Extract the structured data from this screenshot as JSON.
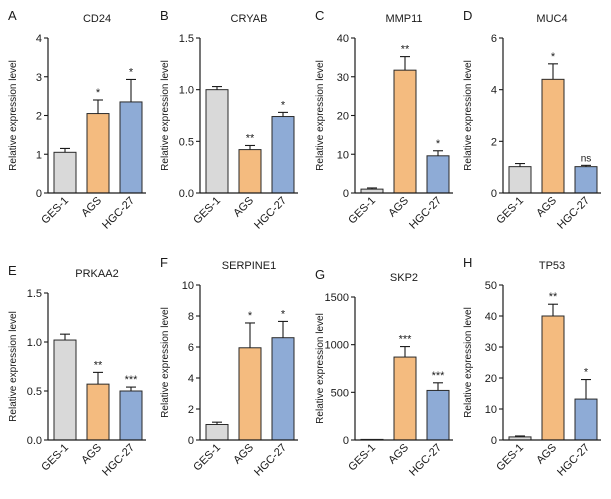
{
  "colors": {
    "GES-1": "#d9d9d9",
    "AGS": "#f4bb7f",
    "HGC-27": "#8eabd6"
  },
  "chart_data": [
    {
      "panel": "A",
      "type": "bar",
      "title": "CD24",
      "ylabel": "Relative expression level",
      "categories": [
        "GES-1",
        "AGS",
        "HGC-27"
      ],
      "values": [
        1.05,
        2.05,
        2.35
      ],
      "errors": [
        0.1,
        0.35,
        0.58
      ],
      "significance": [
        "",
        "*",
        "*"
      ],
      "ylim": [
        0,
        4
      ],
      "yticks": [
        0,
        1,
        2,
        3,
        4
      ],
      "tick_labels": [
        "0",
        "1",
        "2",
        "3",
        "4"
      ]
    },
    {
      "panel": "B",
      "type": "bar",
      "title": "CRYAB",
      "ylabel": "Relative expression level",
      "categories": [
        "GES-1",
        "AGS",
        "HGC-27"
      ],
      "values": [
        1.0,
        0.42,
        0.74
      ],
      "errors": [
        0.03,
        0.04,
        0.04
      ],
      "significance": [
        "",
        "**",
        "*"
      ],
      "ylim": [
        0,
        1.5
      ],
      "yticks": [
        0,
        0.5,
        1,
        1.5
      ],
      "tick_labels": [
        "0.0",
        "0.5",
        "1.0",
        "1.5"
      ]
    },
    {
      "panel": "C",
      "type": "bar",
      "title": "MMP11",
      "ylabel": "Relative expression level",
      "categories": [
        "GES-1",
        "AGS",
        "HGC-27"
      ],
      "values": [
        1.0,
        31.7,
        9.6
      ],
      "errors": [
        0.3,
        3.5,
        1.3
      ],
      "significance": [
        "",
        "**",
        "*"
      ],
      "ylim": [
        0,
        40
      ],
      "yticks": [
        0,
        10,
        20,
        30,
        40
      ],
      "tick_labels": [
        "0",
        "10",
        "20",
        "30",
        "40"
      ]
    },
    {
      "panel": "D",
      "type": "bar",
      "title": "MUC4",
      "ylabel": "Relative expression level",
      "categories": [
        "GES-1",
        "AGS",
        "HGC-27"
      ],
      "values": [
        1.02,
        4.4,
        1.02
      ],
      "errors": [
        0.12,
        0.6,
        0.05
      ],
      "significance": [
        "",
        "*",
        "ns"
      ],
      "ylim": [
        0,
        6
      ],
      "yticks": [
        0,
        2,
        4,
        6
      ],
      "tick_labels": [
        "0",
        "2",
        "4",
        "6"
      ]
    },
    {
      "panel": "E",
      "type": "bar",
      "title": "PRKAA2",
      "ylabel": "Relative expression level",
      "categories": [
        "GES-1",
        "AGS",
        "HGC-27"
      ],
      "values": [
        1.02,
        0.57,
        0.5
      ],
      "errors": [
        0.06,
        0.12,
        0.04
      ],
      "significance": [
        "",
        "**",
        "***"
      ],
      "ylim": [
        0,
        1.5
      ],
      "yticks": [
        0,
        0.5,
        1,
        1.5
      ],
      "tick_labels": [
        "0.0",
        "0.5",
        "1.0",
        "1.5"
      ]
    },
    {
      "panel": "F",
      "type": "bar",
      "title": "SERPINE1",
      "ylabel": "Relative expression level",
      "categories": [
        "GES-1",
        "AGS",
        "HGC-27"
      ],
      "values": [
        1.0,
        5.95,
        6.6
      ],
      "errors": [
        0.15,
        1.6,
        1.05
      ],
      "significance": [
        "",
        "*",
        "*"
      ],
      "ylim": [
        0,
        10
      ],
      "yticks": [
        0,
        2,
        4,
        6,
        8,
        10
      ],
      "tick_labels": [
        "0",
        "2",
        "4",
        "6",
        "8",
        "10"
      ]
    },
    {
      "panel": "G",
      "type": "bar",
      "title": "SKP2",
      "ylabel": "Relative expression level",
      "categories": [
        "GES-1",
        "AGS",
        "HGC-27"
      ],
      "values": [
        1,
        870,
        520
      ],
      "errors": [
        0,
        110,
        80
      ],
      "significance": [
        "",
        "***",
        "***"
      ],
      "ylim": [
        0,
        1500
      ],
      "yticks": [
        0,
        500,
        1000,
        1500
      ],
      "tick_labels": [
        "0",
        "500",
        "1000",
        "1500"
      ]
    },
    {
      "panel": "H",
      "type": "bar",
      "title": "TP53",
      "ylabel": "Relative expression level",
      "categories": [
        "GES-1",
        "AGS",
        "HGC-27"
      ],
      "values": [
        1.0,
        40.0,
        13.2
      ],
      "errors": [
        0.3,
        3.8,
        6.3
      ],
      "significance": [
        "",
        "**",
        "*"
      ],
      "ylim": [
        0,
        50
      ],
      "yticks": [
        0,
        10,
        20,
        30,
        40,
        50
      ],
      "tick_labels": [
        "0",
        "10",
        "20",
        "30",
        "40",
        "50"
      ]
    }
  ]
}
